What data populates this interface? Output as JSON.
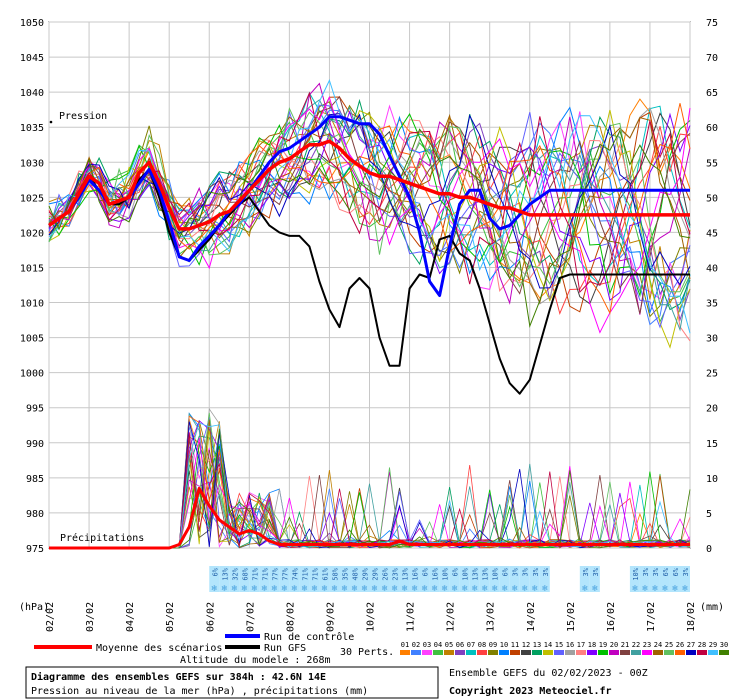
{
  "chart_data": {
    "type": "line",
    "title": "Diagramme des ensembles GEFS sur 384h : 42.6N 14E",
    "subtitle": "Pression au niveau de la mer (hPa) , précipitations (mm)",
    "altitude": "Altitude du modele : 268m",
    "credit": "Ensemble GEFS du 02/02/2023 - 00Z",
    "copyright": "Copyright 2023 Meteociel.fr",
    "left_unit": "(hPa)",
    "right_unit": "(mm)",
    "pressure_label": "Pression",
    "precip_label": "Précipitations",
    "yleft_ticks": [
      "1050",
      "1045",
      "1040",
      "1035",
      "1030",
      "1025",
      "1020",
      "1015",
      "1010",
      "1005",
      "1000",
      "995",
      "990",
      "985",
      "980",
      "975"
    ],
    "yright_ticks": [
      "75",
      "70",
      "65",
      "60",
      "55",
      "50",
      "45",
      "40",
      "35",
      "30",
      "25",
      "20",
      "15",
      "10",
      "5",
      "0"
    ],
    "ylim_left": [
      975,
      1050
    ],
    "ylim_right": [
      0,
      75
    ],
    "x_ticks": [
      "02/02",
      "03/02",
      "04/02",
      "05/02",
      "06/02",
      "07/02",
      "08/02",
      "09/02",
      "10/02",
      "11/02",
      "12/02",
      "13/02",
      "14/02",
      "15/02",
      "16/02",
      "17/02",
      "18/02"
    ],
    "legend": {
      "mean": "Moyenne des scénarios",
      "control": "Run de contrôle",
      "gfs": "Run GFS",
      "perts": "30 Perts."
    },
    "pert_labels": [
      "01",
      "02",
      "03",
      "04",
      "05",
      "06",
      "07",
      "08",
      "09",
      "10",
      "11",
      "12",
      "13",
      "14",
      "15",
      "16",
      "17",
      "18",
      "19",
      "20",
      "21",
      "22",
      "23",
      "24",
      "25",
      "26",
      "27",
      "28",
      "29",
      "30"
    ],
    "pert_colors": [
      "#ff7f00",
      "#4080ff",
      "#ff40ff",
      "#40c040",
      "#c08000",
      "#8040c0",
      "#00c0c0",
      "#ff4040",
      "#808000",
      "#0080ff",
      "#c04000",
      "#404040",
      "#00a060",
      "#c0c000",
      "#6060ff",
      "#a0a0a0",
      "#ff8080",
      "#8000ff",
      "#00c000",
      "#c000c0",
      "#804040",
      "#40a0a0",
      "#ff00ff",
      "#a06000",
      "#60c060",
      "#ff6000",
      "#0000c0",
      "#c00040",
      "#40c0ff",
      "#408000"
    ],
    "precip_prob_labels": [
      "6%",
      "13%",
      "32%",
      "68%",
      "71%",
      "71%",
      "77%",
      "77%",
      "74%",
      "71%",
      "71%",
      "61%",
      "58%",
      "35%",
      "48%",
      "29%",
      "29%",
      "26%",
      "23%",
      "13%",
      "16%",
      "6%",
      "16%",
      "10%",
      "6%",
      "10%",
      "13%",
      "13%",
      "10%",
      "6%",
      "3%",
      "3%",
      "3%",
      "3%",
      "3%",
      "3%",
      "10%",
      "3%",
      "3%",
      "6%",
      "6%",
      "3%"
    ],
    "colors": {
      "mean": "#ff0000",
      "control": "#0000ff",
      "gfs": "#000000"
    },
    "series": [
      {
        "name": "Moyenne des scénarios",
        "x": [
          0,
          0.25,
          0.5,
          0.75,
          1,
          1.25,
          1.5,
          1.75,
          2,
          2.25,
          2.5,
          2.75,
          3,
          3.25,
          3.5,
          3.75,
          4,
          4.25,
          4.5,
          4.75,
          5,
          5.25,
          5.5,
          5.75,
          6,
          6.25,
          6.5,
          6.75,
          7,
          7.25,
          7.5,
          7.75,
          8,
          8.25,
          8.5,
          8.75,
          9,
          9.25,
          9.5,
          9.75,
          10,
          10.25,
          10.5,
          10.75,
          11,
          11.25,
          11.5,
          11.75,
          12,
          12.25,
          12.5,
          12.75,
          13,
          13.25,
          13.5,
          13.75,
          14,
          14.25,
          14.5,
          14.75,
          15,
          15.25,
          15.5,
          15.75,
          16
        ],
        "values": [
          1021,
          1022,
          1023,
          1025.5,
          1028,
          1027,
          1024,
          1024.5,
          1025,
          1028.5,
          1030,
          1027,
          1023.5,
          1020.5,
          1020.5,
          1021,
          1021.5,
          1022.5,
          1023,
          1024.5,
          1026,
          1027.5,
          1029,
          1030,
          1030.5,
          1031.5,
          1032.5,
          1032.5,
          1033,
          1032,
          1030.5,
          1029.5,
          1028.5,
          1028,
          1028,
          1027.5,
          1027,
          1026.5,
          1026,
          1025.5,
          1025.5,
          1025,
          1025,
          1024.5,
          1024,
          1023.5,
          1023.5,
          1023,
          1022.5,
          1022.5,
          1022.5,
          1022.5,
          1022.5,
          1022.5,
          1022.5,
          1022.5,
          1022.5,
          1022.5,
          1022.5,
          1022.5,
          1022.5,
          1022.5,
          1022.5,
          1022.5,
          1022.5
        ]
      },
      {
        "name": "Run de contrôle",
        "x": [
          0,
          0.25,
          0.5,
          0.75,
          1,
          1.25,
          1.5,
          1.75,
          2,
          2.25,
          2.5,
          2.75,
          3,
          3.25,
          3.5,
          3.75,
          4,
          4.25,
          4.5,
          4.75,
          5,
          5.25,
          5.5,
          5.75,
          6,
          6.25,
          6.5,
          6.75,
          7,
          7.25,
          7.5,
          7.75,
          8,
          8.25,
          8.5,
          8.75,
          9,
          9.25,
          9.5,
          9.75,
          10,
          10.25,
          10.5,
          10.75,
          11,
          11.25,
          11.5,
          11.75,
          12,
          12.25,
          12.5,
          12.75,
          13,
          13.25,
          13.5,
          13.75,
          14,
          14.25,
          14.5,
          14.75,
          15,
          15.25,
          15.5,
          15.75,
          16
        ],
        "values": [
          1021,
          1022,
          1023,
          1025,
          1027.5,
          1026,
          1024,
          1024.5,
          1025,
          1027,
          1029,
          1026,
          1021.5,
          1016.5,
          1016,
          1018,
          1019.5,
          1021,
          1023,
          1024,
          1026,
          1028,
          1030,
          1031.5,
          1032,
          1033,
          1034,
          1035,
          1036.5,
          1036.5,
          1036,
          1035.5,
          1035.5,
          1034,
          1031,
          1028,
          1025,
          1020,
          1013,
          1011,
          1018,
          1024,
          1026,
          1026,
          1022,
          1020.5,
          1021,
          1022.5,
          1024,
          1025,
          1026,
          1026,
          1026,
          1026,
          1026,
          1026,
          1026,
          1026,
          1026,
          1026,
          1026,
          1026,
          1026,
          1026,
          1026
        ]
      },
      {
        "name": "Run GFS",
        "x": [
          0,
          0.25,
          0.5,
          0.75,
          1,
          1.25,
          1.5,
          1.75,
          2,
          2.25,
          2.5,
          2.75,
          3,
          3.25,
          3.5,
          3.75,
          4,
          4.25,
          4.5,
          4.75,
          5,
          5.25,
          5.5,
          5.75,
          6,
          6.25,
          6.5,
          6.75,
          7,
          7.25,
          7.5,
          7.75,
          8,
          8.25,
          8.5,
          8.75,
          9,
          9.25,
          9.5,
          9.75,
          10,
          10.25,
          10.5,
          10.75,
          11,
          11.25,
          11.5,
          11.75,
          12,
          12.25,
          12.5,
          12.75,
          13,
          13.25,
          13.5,
          13.75,
          14,
          14.25,
          14.5,
          14.75,
          15,
          15.25,
          15.5,
          15.75,
          16
        ],
        "values": [
          1021,
          1022,
          1023,
          1025,
          1028,
          1026,
          1024,
          1024,
          1025,
          1027.5,
          1029,
          1025,
          1020,
          1016.5,
          1016,
          1017.5,
          1019,
          1021,
          1022.5,
          1024,
          1025,
          1023,
          1021,
          1020,
          1019.5,
          1019.5,
          1018,
          1013,
          1009,
          1006.5,
          1012,
          1013.5,
          1012,
          1005,
          1001,
          1001,
          1012,
          1014,
          1013.5,
          1019,
          1019.5,
          1017,
          1016,
          1012,
          1007,
          1002,
          998.5,
          997,
          999,
          1004,
          1009,
          1013.5,
          1014,
          1014,
          1014,
          1014,
          1014,
          1014,
          1014,
          1014,
          1014,
          1014,
          1014,
          1014,
          1014
        ]
      },
      {
        "name": "Précipitations - Moyenne",
        "axis": "right",
        "x": [
          0,
          0.25,
          0.5,
          0.75,
          1,
          1.25,
          1.5,
          1.75,
          2,
          2.25,
          2.5,
          2.75,
          3,
          3.25,
          3.5,
          3.75,
          4,
          4.25,
          4.5,
          4.75,
          5,
          5.25,
          5.5,
          5.75,
          6,
          6.25,
          6.5,
          6.75,
          7,
          7.25,
          7.5,
          7.75,
          8,
          8.25,
          8.5,
          8.75,
          9,
          9.25,
          9.5,
          9.75,
          10,
          10.25,
          10.5,
          10.75,
          11,
          11.25,
          11.5,
          11.75,
          12,
          12.25,
          12.5,
          12.75,
          13,
          13.25,
          13.5,
          13.75,
          14,
          14.25,
          14.5,
          14.75,
          15,
          15.25,
          15.5,
          15.75,
          16
        ],
        "values": [
          0,
          0,
          0,
          0,
          0,
          0,
          0,
          0,
          0,
          0,
          0,
          0,
          0,
          0.5,
          3,
          8.5,
          6,
          4,
          3,
          2,
          2.5,
          2,
          1,
          0.5,
          0.5,
          0.5,
          0.5,
          0.5,
          0.5,
          0.5,
          0.5,
          0.5,
          0.5,
          0.5,
          0.5,
          1,
          0.5,
          0.5,
          0.5,
          0.5,
          0.5,
          0.5,
          0.5,
          0.5,
          0.5,
          0.5,
          0.5,
          0.5,
          0.5,
          0.5,
          0.5,
          0.5,
          0.5,
          0.5,
          0.5,
          0.5,
          0.5,
          0.5,
          0.5,
          0.5,
          0.5,
          0.5,
          0.5,
          0.5,
          0.5
        ]
      }
    ]
  }
}
